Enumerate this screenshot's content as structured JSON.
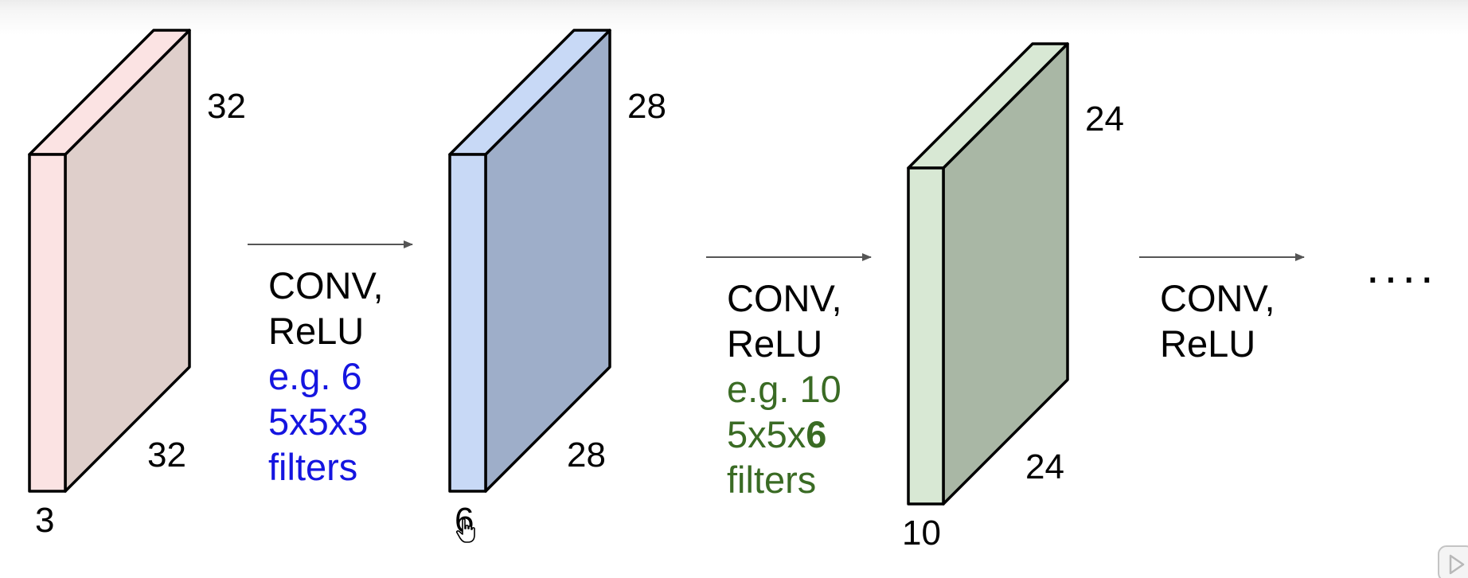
{
  "volumes": [
    {
      "height_label": "32",
      "width_label": "32",
      "depth_label": "3",
      "colors": {
        "front": "#fbe3e3",
        "side": "#dfcfcb",
        "top": "#fbe3e3"
      }
    },
    {
      "height_label": "28",
      "width_label": "28",
      "depth_label": "6",
      "colors": {
        "front": "#c8d9f6",
        "side": "#9eaec9",
        "top": "#c8d9f6"
      }
    },
    {
      "height_label": "24",
      "width_label": "24",
      "depth_label": "10",
      "colors": {
        "front": "#d8e8d4",
        "side": "#a9b7a5",
        "top": "#d8e8d4"
      }
    }
  ],
  "steps": [
    {
      "op_line1": "CONV,",
      "op_line2": "ReLU",
      "example_line1": "e.g. 6",
      "example_line2": "5x5x3",
      "example_line3": "filters",
      "example_color": "#1515e0"
    },
    {
      "op_line1": "CONV,",
      "op_line2": "ReLU",
      "example_line1": "e.g. 10",
      "example_line2_prefix": "5x5x",
      "example_line2_bold": "6",
      "example_line3": "filters",
      "example_color": "#3a6b24"
    },
    {
      "op_line1": "CONV,",
      "op_line2": "ReLU"
    }
  ],
  "continuation": "....",
  "arrow_color": "#555555"
}
